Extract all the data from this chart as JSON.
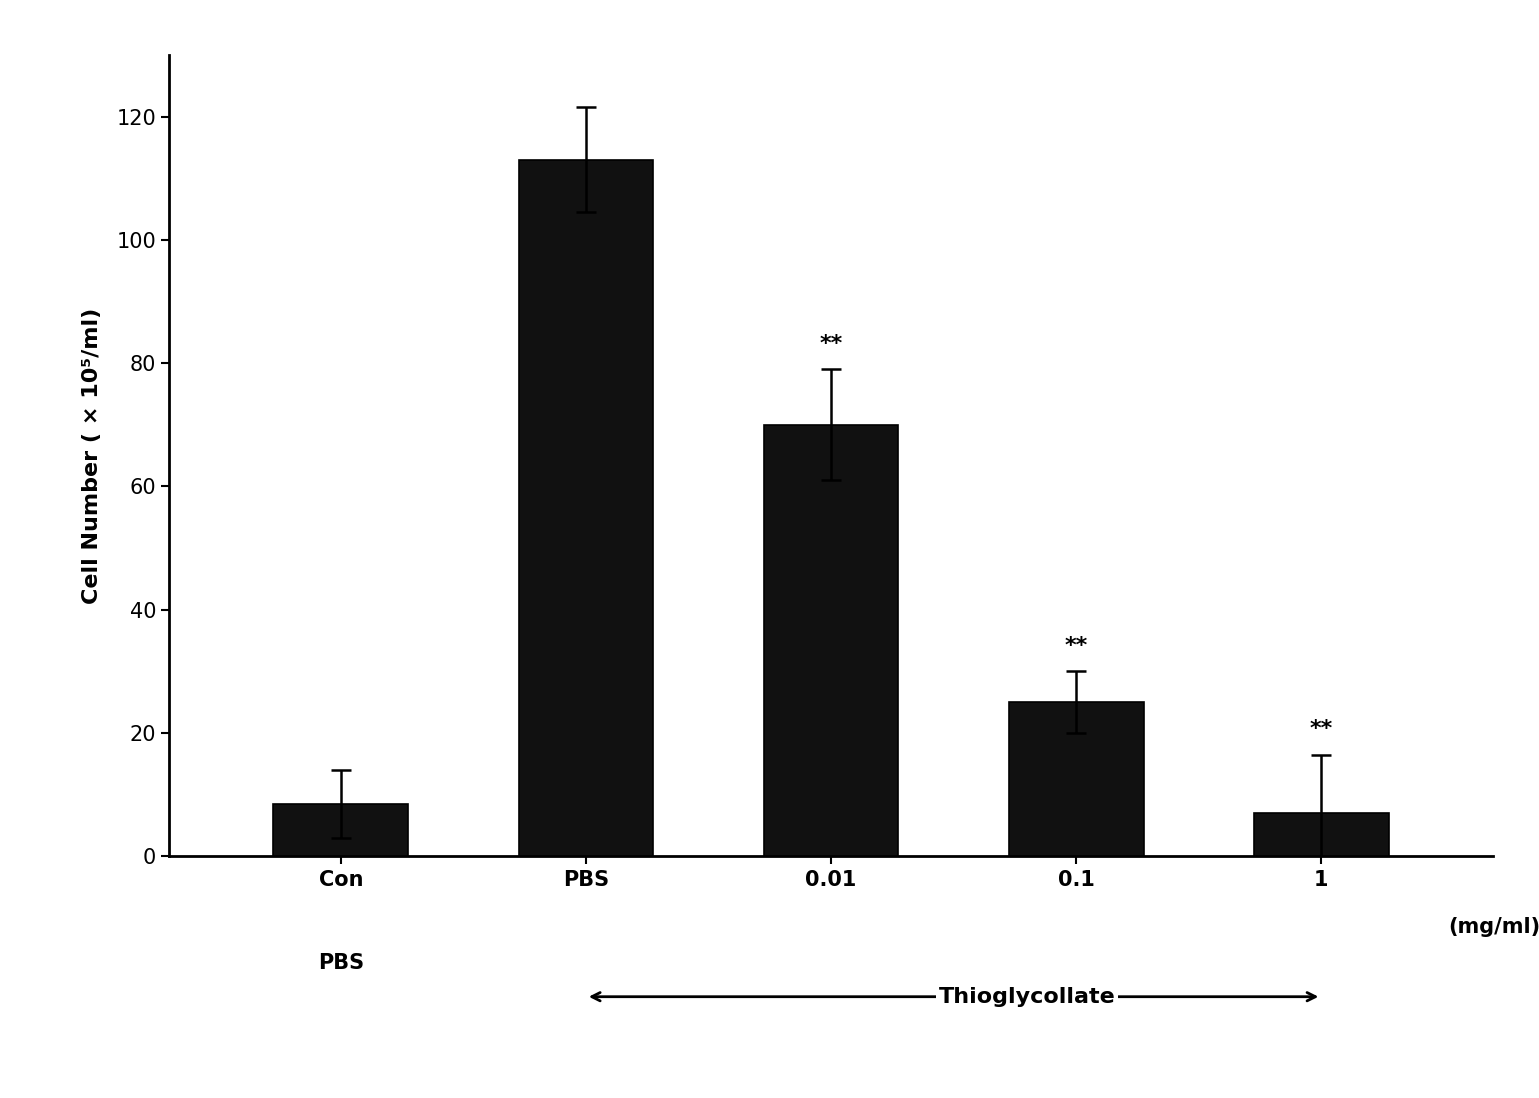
{
  "categories": [
    "Con\nPBS",
    "PBS",
    "0.01",
    "0.1",
    "1"
  ],
  "values": [
    8.5,
    113.0,
    70.0,
    25.0,
    7.0
  ],
  "errors": [
    5.5,
    8.5,
    9.0,
    5.0,
    9.5
  ],
  "bar_color": "#111111",
  "bar_edge_color": "#000000",
  "ylabel": "Cell Number ( × 10⁵/ml)",
  "ylim": [
    0,
    130
  ],
  "yticks": [
    0,
    20,
    40,
    60,
    80,
    100,
    120
  ],
  "significance_labels": [
    null,
    null,
    "**",
    "**",
    "**"
  ],
  "sig_fontsize": 16,
  "ylabel_fontsize": 16,
  "tick_fontsize": 15,
  "thioglycollate_label": "Thioglycollate",
  "mgml_label": "(mg/ml)",
  "background_color": "#ffffff",
  "bar_width": 0.55,
  "arrow_fontsize": 16
}
